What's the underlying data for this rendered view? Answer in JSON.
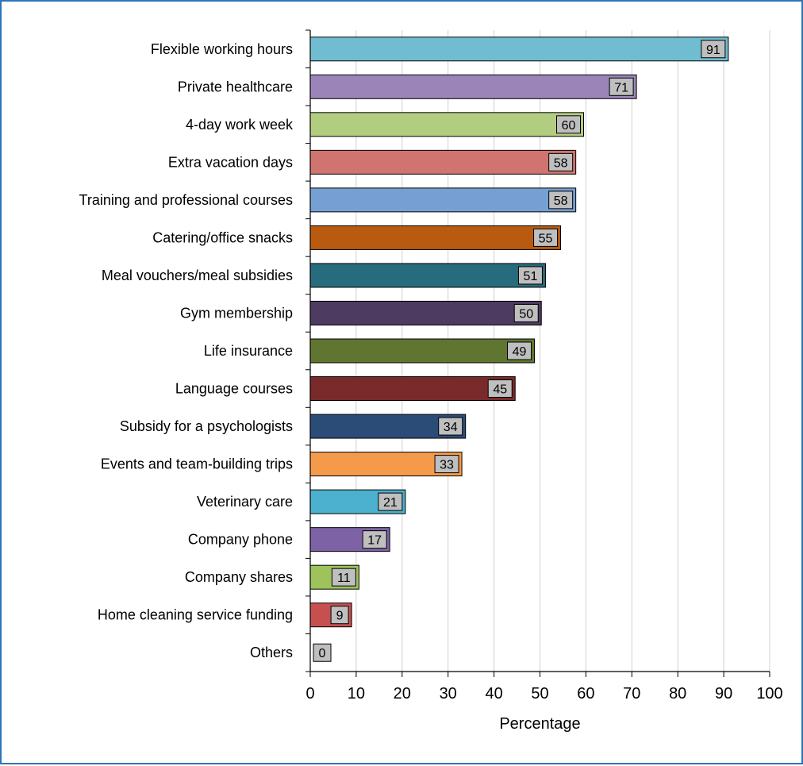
{
  "chart_data": {
    "type": "bar",
    "orientation": "horizontal",
    "title": "",
    "xlabel": "Percentage",
    "ylabel": "",
    "xlim": [
      0,
      100
    ],
    "xticks": [
      0,
      10,
      20,
      30,
      40,
      50,
      60,
      70,
      80,
      90,
      100
    ],
    "grid": "vertical",
    "legend": "none",
    "categories": [
      "Flexible working hours",
      "Private healthcare",
      "4-day work week",
      "Extra vacation days",
      "Training and professional courses",
      "Catering/office snacks",
      "Meal vouchers/meal subsidies",
      "Gym membership",
      "Life insurance",
      "Language courses",
      "Subsidy for a psychologists",
      "Events and team-building trips",
      "Veterinary care",
      "Company phone",
      "Company shares",
      "Home cleaning service funding",
      "Others"
    ],
    "values": [
      91,
      71,
      59.5,
      57.8,
      57.8,
      54.5,
      51.2,
      50.3,
      48.8,
      44.6,
      33.8,
      33,
      20.7,
      17.3,
      10.6,
      9,
      0
    ],
    "data_labels": [
      "91",
      "71",
      "60",
      "58",
      "58",
      "55",
      "51",
      "50",
      "49",
      "45",
      "34",
      "33",
      "21",
      "17",
      "11",
      "9",
      "0"
    ],
    "colors": [
      "#70bdd1",
      "#9b85b8",
      "#b3cd80",
      "#d07470",
      "#76a0d3",
      "#b85a10",
      "#276c7c",
      "#4d3b62",
      "#607530",
      "#7a2a2a",
      "#2c4c78",
      "#f59a4b",
      "#4bb1ce",
      "#7d63a6",
      "#9dc35a",
      "#c65050",
      "#bfbfbf"
    ],
    "label_box_color": "#bfbfbf",
    "frame_color": "#2e75b6"
  }
}
